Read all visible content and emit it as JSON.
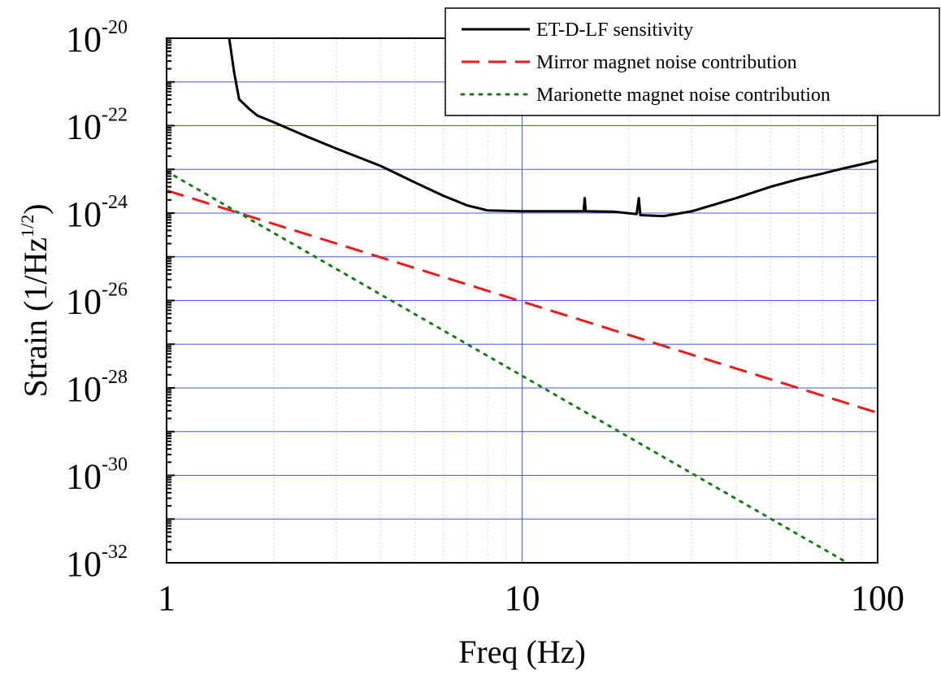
{
  "chart_data": {
    "type": "line",
    "xlabel": "Freq (Hz)",
    "ylabel": {
      "prefix": "Strain (1/Hz",
      "sup": "1/2",
      "suffix": ")"
    },
    "xscale": "log",
    "yscale": "log",
    "xlim": [
      1,
      100
    ],
    "ylim": [
      1e-32,
      1e-20
    ],
    "x_ticks": [
      {
        "value": 1,
        "label": "1"
      },
      {
        "value": 10,
        "label": "10"
      },
      {
        "value": 100,
        "label": "100"
      }
    ],
    "y_ticks": [
      {
        "value": 1e-20,
        "base": "10",
        "exp": "-20"
      },
      {
        "value": 1e-22,
        "base": "10",
        "exp": "-22"
      },
      {
        "value": 1e-24,
        "base": "10",
        "exp": "-24"
      },
      {
        "value": 1e-26,
        "base": "10",
        "exp": "-26"
      },
      {
        "value": 1e-28,
        "base": "10",
        "exp": "-28"
      },
      {
        "value": 1e-30,
        "base": "10",
        "exp": "-30"
      },
      {
        "value": 1e-32,
        "base": "10",
        "exp": "-32"
      }
    ],
    "grid": true,
    "legend_position": "top-right",
    "series": [
      {
        "name": "ET-D-LF sensitivity",
        "style": "solid",
        "color": "#000000",
        "points": [
          [
            1.5,
            1e-20
          ],
          [
            1.55,
            1.6e-21
          ],
          [
            1.6,
            4e-22
          ],
          [
            1.7,
            2.5e-22
          ],
          [
            1.8,
            1.7e-22
          ],
          [
            2.0,
            1.2e-22
          ],
          [
            2.5,
            5.5e-23
          ],
          [
            3.0,
            3e-23
          ],
          [
            4.0,
            1.2e-23
          ],
          [
            5.0,
            5e-24
          ],
          [
            6.0,
            2.5e-24
          ],
          [
            7.0,
            1.5e-24
          ],
          [
            8.0,
            1.15e-24
          ],
          [
            10.0,
            1.1e-24
          ],
          [
            14.9,
            1.1e-24
          ],
          [
            15.0,
            2.2e-24
          ],
          [
            15.1,
            1.1e-24
          ],
          [
            18.0,
            1.08e-24
          ],
          [
            21.0,
            9.5e-25
          ],
          [
            21.3,
            2.2e-24
          ],
          [
            21.5,
            9e-25
          ],
          [
            25.0,
            8.5e-25
          ],
          [
            30.0,
            1.1e-24
          ],
          [
            40.0,
            2.2e-24
          ],
          [
            50.0,
            4e-24
          ],
          [
            60.0,
            6e-24
          ],
          [
            70.0,
            8e-24
          ],
          [
            80.0,
            1.05e-23
          ],
          [
            90.0,
            1.3e-23
          ],
          [
            100.0,
            1.6e-23
          ]
        ]
      },
      {
        "name": "Mirror magnet noise contribution",
        "style": "dashed",
        "color": "#e81c1c",
        "points": [
          [
            1.0,
            3.3e-24
          ],
          [
            100.0,
            2.7e-29
          ]
        ]
      },
      {
        "name": "Marionette magnet noise contribution",
        "style": "dotted",
        "color": "#1a7a1a",
        "points": [
          [
            1.0,
            9e-24
          ],
          [
            100.0,
            4e-33
          ]
        ]
      }
    ]
  }
}
